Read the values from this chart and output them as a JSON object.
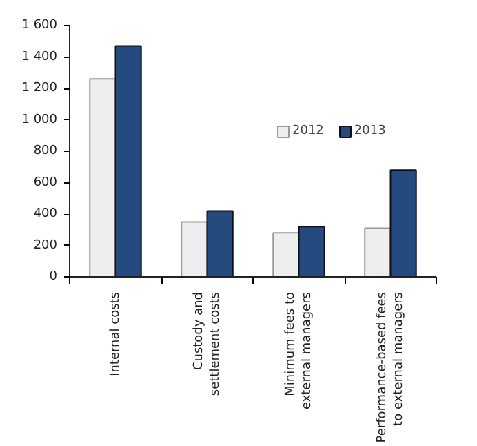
{
  "chart_data": {
    "type": "bar",
    "categories": [
      "Internal costs",
      "Custody and settlement costs",
      "Minimum fees to external managers",
      "Performance-based fees to external managers"
    ],
    "series": [
      {
        "name": "2012",
        "color": "#eeeeee",
        "values": [
          1260,
          350,
          280,
          310
        ]
      },
      {
        "name": "2013",
        "color": "#244a80",
        "values": [
          1470,
          420,
          320,
          680
        ]
      }
    ],
    "ylim": [
      0,
      1600
    ],
    "yticks": [
      {
        "value": 0,
        "label": "0"
      },
      {
        "value": 200,
        "label": "200"
      },
      {
        "value": 400,
        "label": "400"
      },
      {
        "value": 600,
        "label": "600"
      },
      {
        "value": 800,
        "label": "800"
      },
      {
        "value": 1000,
        "label": "1 000"
      },
      {
        "value": 1200,
        "label": "1 200"
      },
      {
        "value": 1400,
        "label": "1 400"
      },
      {
        "value": 1600,
        "label": "1 600"
      }
    ],
    "grid": false,
    "legend": "top right"
  }
}
